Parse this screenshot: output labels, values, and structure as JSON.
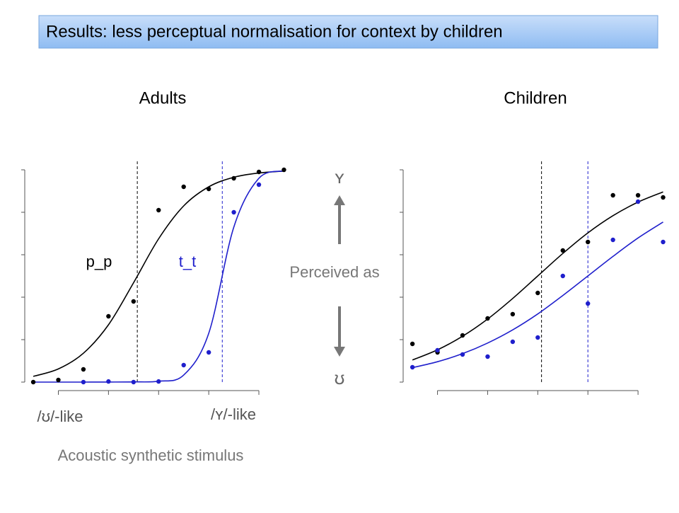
{
  "header": {
    "title": "Results: less perceptual normalisation for context by children"
  },
  "chart_data": [
    {
      "type": "scatter",
      "title": "Adults",
      "x": [
        1,
        2,
        3,
        4,
        5,
        6,
        7,
        8,
        9,
        10,
        11
      ],
      "xlim": [
        0.66,
        11.1
      ],
      "xticks": [
        2,
        4,
        6,
        8,
        10
      ],
      "ylim": [
        0,
        1
      ],
      "yticks": [
        0,
        0.2,
        0.4,
        0.6,
        0.8,
        1
      ],
      "series": [
        {
          "name": "p_p",
          "color": "#000000",
          "values": [
            0,
            0.01,
            0.06,
            0.31,
            0.38,
            0.81,
            0.92,
            0.91,
            0.96,
            0.99,
            1
          ]
        },
        {
          "name": "t_t",
          "color": "#1f1fcc",
          "values": [
            null,
            null,
            0,
            0.003,
            0,
            0.003,
            0.08,
            0.14,
            0.8,
            0.93,
            null
          ]
        }
      ],
      "fits": [
        {
          "color": "#000000",
          "values": [
            0.027,
            0.062,
            0.136,
            0.27,
            0.468,
            0.675,
            0.83,
            0.92,
            0.965,
            0.985,
            0.994
          ]
        },
        {
          "color": "#1f1fcc",
          "values": [
            0,
            0,
            0,
            0.0003,
            0.001,
            0.004,
            0.033,
            0.23,
            0.73,
            0.96,
            0.995
          ]
        }
      ],
      "boundaries": [
        {
          "value": 5.15,
          "color": "#000000"
        },
        {
          "value": 8.54,
          "color": "#1f1fcc"
        }
      ]
    },
    {
      "type": "scatter",
      "title": "Children",
      "x": [
        1,
        2,
        3,
        4,
        5,
        6,
        7,
        8,
        9,
        10,
        11
      ],
      "xlim": [
        0.63,
        11.07
      ],
      "xticks": [
        2,
        4,
        6,
        8,
        10
      ],
      "ylim": [
        0,
        1
      ],
      "yticks": [
        0,
        0.2,
        0.4,
        0.6,
        0.8,
        1
      ],
      "series": [
        {
          "color": "#000000",
          "values": [
            0.18,
            0.14,
            0.22,
            0.3,
            0.32,
            0.42,
            0.62,
            0.66,
            0.88,
            0.88,
            0.87
          ]
        },
        {
          "color": "#1f1fcc",
          "values": [
            0.07,
            0.15,
            0.13,
            0.12,
            0.19,
            0.21,
            0.5,
            0.37,
            0.67,
            0.85,
            0.66
          ]
        }
      ],
      "fits": [
        {
          "color": "#000000",
          "values": [
            0.104,
            0.152,
            0.216,
            0.297,
            0.394,
            0.5,
            0.606,
            0.703,
            0.784,
            0.848,
            0.896
          ]
        },
        {
          "color": "#1f1fcc",
          "values": [
            0.068,
            0.096,
            0.134,
            0.184,
            0.246,
            0.321,
            0.408,
            0.5,
            0.592,
            0.679,
            0.754
          ]
        }
      ],
      "boundaries": [
        {
          "value": 6.15,
          "color": "#000000"
        },
        {
          "value": 8.0,
          "color": "#1f1fcc"
        }
      ]
    }
  ],
  "labels": {
    "top_vowel": "ʏ",
    "bottom_vowel": "ʊ",
    "perceived": "Perceived as",
    "left_end": "/ʊ/-like",
    "right_end": "/ʏ/-like",
    "x_axis": "Acoustic synthetic stimulus"
  }
}
